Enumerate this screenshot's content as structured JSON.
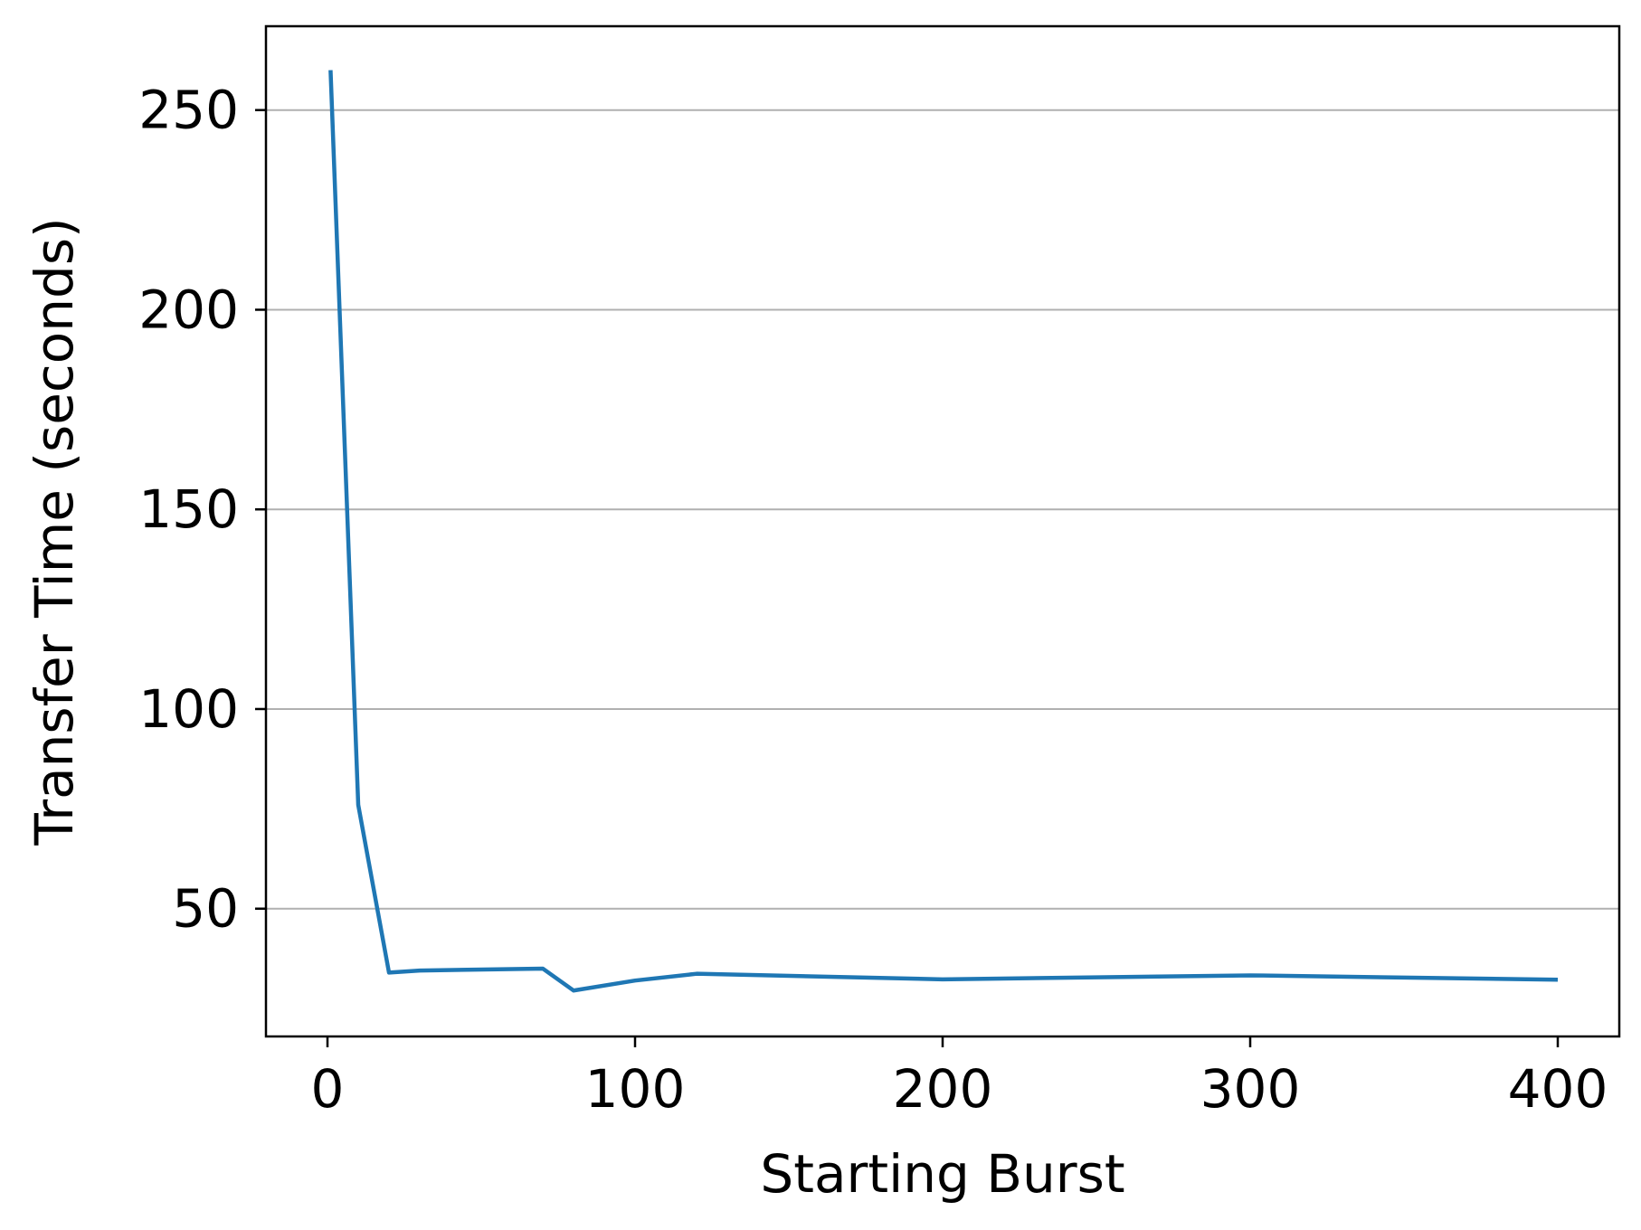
{
  "chart_data": {
    "type": "line",
    "title": "",
    "xlabel": "Starting Burst",
    "ylabel": "Transfer Time (seconds)",
    "xlim": [
      -20,
      420
    ],
    "ylim": [
      18,
      271
    ],
    "x_ticks": [
      0,
      100,
      200,
      300,
      400
    ],
    "y_ticks": [
      50,
      100,
      150,
      200,
      250
    ],
    "grid": "horizontal",
    "series": [
      {
        "color": "#1f77b4",
        "x": [
          1,
          10,
          20,
          30,
          70,
          80,
          100,
          120,
          200,
          300,
          400
        ],
        "y": [
          260,
          76,
          34,
          34.5,
          35,
          29.5,
          32,
          33.7,
          32.3,
          33.3,
          32.2
        ]
      }
    ]
  }
}
